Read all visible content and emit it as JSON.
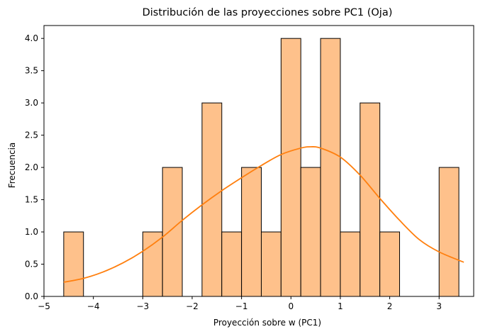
{
  "chart_data": {
    "type": "histogram",
    "title": "Distribución de las proyecciones sobre PC1 (Oja)",
    "xlabel": "Proyección sobre w (PC1)",
    "ylabel": "Frecuencia",
    "xlim": [
      -5.0,
      3.7
    ],
    "ylim": [
      0,
      4.2
    ],
    "x_ticks": [
      -5,
      -4,
      -3,
      -2,
      -1,
      0,
      1,
      2,
      3
    ],
    "x_tick_labels": [
      "−5",
      "−4",
      "−3",
      "−2",
      "−1",
      "0",
      "1",
      "2",
      "3"
    ],
    "y_ticks": [
      0,
      0.5,
      1,
      1.5,
      2,
      2.5,
      3,
      3.5,
      4
    ],
    "y_tick_labels": [
      "0.0",
      "0.5",
      "1.0",
      "1.5",
      "2.0",
      "2.5",
      "3.0",
      "3.5",
      "4.0"
    ],
    "bin_edges": [
      -4.6,
      -4.2,
      -3.8,
      -3.4,
      -3.0,
      -2.6,
      -2.2,
      -1.8,
      -1.4,
      -1.0,
      -0.6,
      -0.2,
      0.2,
      0.6,
      1.0,
      1.4,
      1.8,
      2.2,
      2.6,
      3.0,
      3.4
    ],
    "counts": [
      1,
      0,
      0,
      0,
      1,
      2,
      0,
      3,
      1,
      2,
      1,
      4,
      2,
      4,
      1,
      3,
      1,
      0,
      0,
      2
    ],
    "kde": {
      "x": [
        -4.6,
        -4.2,
        -3.8,
        -3.4,
        -3.0,
        -2.6,
        -2.2,
        -1.8,
        -1.4,
        -1.0,
        -0.6,
        -0.2,
        0.2,
        0.4,
        0.6,
        1.0,
        1.4,
        1.8,
        2.2,
        2.6,
        3.0,
        3.5
      ],
      "y": [
        0.22,
        0.28,
        0.38,
        0.52,
        0.7,
        0.92,
        1.18,
        1.42,
        1.64,
        1.84,
        2.03,
        2.2,
        2.3,
        2.32,
        2.3,
        2.16,
        1.88,
        1.52,
        1.18,
        0.88,
        0.69,
        0.53
      ]
    },
    "colors": {
      "bar_fill": "#fec18b",
      "bar_edge": "#000000",
      "kde_line": "#ff7f0e"
    },
    "grid": false,
    "legend": "none"
  }
}
